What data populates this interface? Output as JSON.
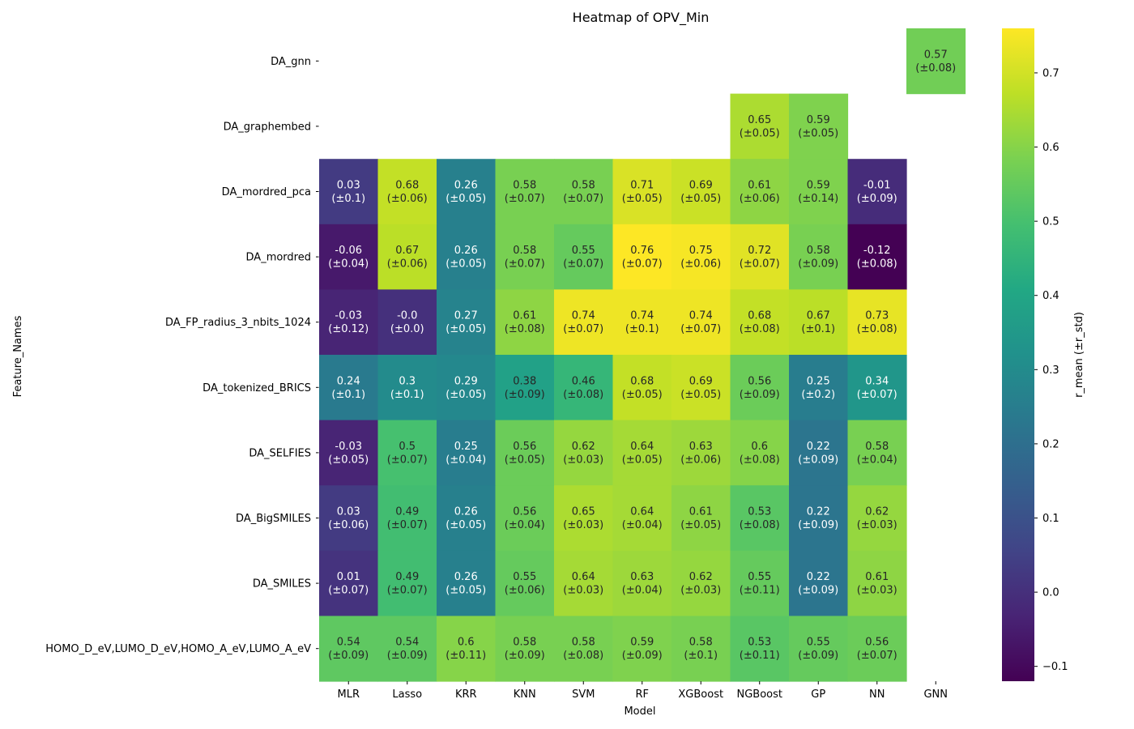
{
  "chart_data": {
    "type": "heatmap",
    "title": "Heatmap of OPV_Min",
    "xlabel": "Model",
    "ylabel": "Feature_Names",
    "colorbar_label": "r_mean (±r_std)",
    "colormap": "viridis",
    "vmin": -0.12,
    "vmax": 0.76,
    "colorbar_ticks": [
      "0.7",
      "0.6",
      "0.5",
      "0.4",
      "0.3",
      "0.2",
      "0.1",
      "0.0",
      "−0.1"
    ],
    "colorbar_tick_values": [
      0.7,
      0.6,
      0.5,
      0.4,
      0.3,
      0.2,
      0.1,
      0.0,
      -0.1
    ],
    "x_categories": [
      "MLR",
      "Lasso",
      "KRR",
      "KNN",
      "SVM",
      "RF",
      "XGBoost",
      "NGBoost",
      "GP",
      "NN",
      "GNN"
    ],
    "y_categories": [
      "DA_gnn",
      "DA_graphembed",
      "DA_mordred_pca",
      "DA_mordred",
      "DA_FP_radius_3_nbits_1024",
      "DA_tokenized_BRICS",
      "DA_SELFIES",
      "DA_BigSMILES",
      "DA_SMILES",
      "HOMO_D_eV,LUMO_D_eV,HOMO_A_eV,LUMO_A_eV"
    ],
    "values": [
      [
        null,
        null,
        null,
        null,
        null,
        null,
        null,
        null,
        null,
        null,
        0.57
      ],
      [
        null,
        null,
        null,
        null,
        null,
        null,
        null,
        0.65,
        0.59,
        null,
        null
      ],
      [
        0.03,
        0.68,
        0.26,
        0.58,
        0.58,
        0.71,
        0.69,
        0.61,
        0.59,
        -0.01,
        null
      ],
      [
        -0.06,
        0.67,
        0.26,
        0.58,
        0.55,
        0.76,
        0.75,
        0.72,
        0.58,
        -0.12,
        null
      ],
      [
        -0.03,
        -0.0,
        0.27,
        0.61,
        0.74,
        0.74,
        0.74,
        0.68,
        0.67,
        0.73,
        null
      ],
      [
        0.24,
        0.3,
        0.29,
        0.38,
        0.46,
        0.68,
        0.69,
        0.56,
        0.25,
        0.34,
        null
      ],
      [
        -0.03,
        0.5,
        0.25,
        0.56,
        0.62,
        0.64,
        0.63,
        0.6,
        0.22,
        0.58,
        null
      ],
      [
        0.03,
        0.49,
        0.26,
        0.56,
        0.65,
        0.64,
        0.61,
        0.53,
        0.22,
        0.62,
        null
      ],
      [
        0.01,
        0.49,
        0.26,
        0.55,
        0.64,
        0.63,
        0.62,
        0.55,
        0.22,
        0.61,
        null
      ],
      [
        0.54,
        0.54,
        0.6,
        0.58,
        0.58,
        0.59,
        0.58,
        0.53,
        0.55,
        0.56,
        null
      ]
    ],
    "labels": [
      [
        null,
        null,
        null,
        null,
        null,
        null,
        null,
        null,
        null,
        null,
        [
          "0.57",
          "(±0.08)"
        ]
      ],
      [
        null,
        null,
        null,
        null,
        null,
        null,
        null,
        [
          "0.65",
          "(±0.05)"
        ],
        [
          "0.59",
          "(±0.05)"
        ],
        null,
        null
      ],
      [
        [
          "0.03",
          "(±0.1)"
        ],
        [
          "0.68",
          "(±0.06)"
        ],
        [
          "0.26",
          "(±0.05)"
        ],
        [
          "0.58",
          "(±0.07)"
        ],
        [
          "0.58",
          "(±0.07)"
        ],
        [
          "0.71",
          "(±0.05)"
        ],
        [
          "0.69",
          "(±0.05)"
        ],
        [
          "0.61",
          "(±0.06)"
        ],
        [
          "0.59",
          "(±0.14)"
        ],
        [
          "-0.01",
          "(±0.09)"
        ],
        null
      ],
      [
        [
          "-0.06",
          "(±0.04)"
        ],
        [
          "0.67",
          "(±0.06)"
        ],
        [
          "0.26",
          "(±0.05)"
        ],
        [
          "0.58",
          "(±0.07)"
        ],
        [
          "0.55",
          "(±0.07)"
        ],
        [
          "0.76",
          "(±0.07)"
        ],
        [
          "0.75",
          "(±0.06)"
        ],
        [
          "0.72",
          "(±0.07)"
        ],
        [
          "0.58",
          "(±0.09)"
        ],
        [
          "-0.12",
          "(±0.08)"
        ],
        null
      ],
      [
        [
          "-0.03",
          "(±0.12)"
        ],
        [
          "-0.0",
          "(±0.0)"
        ],
        [
          "0.27",
          "(±0.05)"
        ],
        [
          "0.61",
          "(±0.08)"
        ],
        [
          "0.74",
          "(±0.07)"
        ],
        [
          "0.74",
          "(±0.1)"
        ],
        [
          "0.74",
          "(±0.07)"
        ],
        [
          "0.68",
          "(±0.08)"
        ],
        [
          "0.67",
          "(±0.1)"
        ],
        [
          "0.73",
          "(±0.08)"
        ],
        null
      ],
      [
        [
          "0.24",
          "(±0.1)"
        ],
        [
          "0.3",
          "(±0.1)"
        ],
        [
          "0.29",
          "(±0.05)"
        ],
        [
          "0.38",
          "(±0.09)"
        ],
        [
          "0.46",
          "(±0.08)"
        ],
        [
          "0.68",
          "(±0.05)"
        ],
        [
          "0.69",
          "(±0.05)"
        ],
        [
          "0.56",
          "(±0.09)"
        ],
        [
          "0.25",
          "(±0.2)"
        ],
        [
          "0.34",
          "(±0.07)"
        ],
        null
      ],
      [
        [
          "-0.03",
          "(±0.05)"
        ],
        [
          "0.5",
          "(±0.07)"
        ],
        [
          "0.25",
          "(±0.04)"
        ],
        [
          "0.56",
          "(±0.05)"
        ],
        [
          "0.62",
          "(±0.03)"
        ],
        [
          "0.64",
          "(±0.05)"
        ],
        [
          "0.63",
          "(±0.06)"
        ],
        [
          "0.6",
          "(±0.08)"
        ],
        [
          "0.22",
          "(±0.09)"
        ],
        [
          "0.58",
          "(±0.04)"
        ],
        null
      ],
      [
        [
          "0.03",
          "(±0.06)"
        ],
        [
          "0.49",
          "(±0.07)"
        ],
        [
          "0.26",
          "(±0.05)"
        ],
        [
          "0.56",
          "(±0.04)"
        ],
        [
          "0.65",
          "(±0.03)"
        ],
        [
          "0.64",
          "(±0.04)"
        ],
        [
          "0.61",
          "(±0.05)"
        ],
        [
          "0.53",
          "(±0.08)"
        ],
        [
          "0.22",
          "(±0.09)"
        ],
        [
          "0.62",
          "(±0.03)"
        ],
        null
      ],
      [
        [
          "0.01",
          "(±0.07)"
        ],
        [
          "0.49",
          "(±0.07)"
        ],
        [
          "0.26",
          "(±0.05)"
        ],
        [
          "0.55",
          "(±0.06)"
        ],
        [
          "0.64",
          "(±0.03)"
        ],
        [
          "0.63",
          "(±0.04)"
        ],
        [
          "0.62",
          "(±0.03)"
        ],
        [
          "0.55",
          "(±0.11)"
        ],
        [
          "0.22",
          "(±0.09)"
        ],
        [
          "0.61",
          "(±0.03)"
        ],
        null
      ],
      [
        [
          "0.54",
          "(±0.09)"
        ],
        [
          "0.54",
          "(±0.09)"
        ],
        [
          "0.6",
          "(±0.11)"
        ],
        [
          "0.58",
          "(±0.09)"
        ],
        [
          "0.58",
          "(±0.08)"
        ],
        [
          "0.59",
          "(±0.09)"
        ],
        [
          "0.58",
          "(±0.1)"
        ],
        [
          "0.53",
          "(±0.11)"
        ],
        [
          "0.55",
          "(±0.09)"
        ],
        [
          "0.56",
          "(±0.07)"
        ],
        null
      ]
    ],
    "grid": false,
    "legend": "colorbar-right"
  }
}
